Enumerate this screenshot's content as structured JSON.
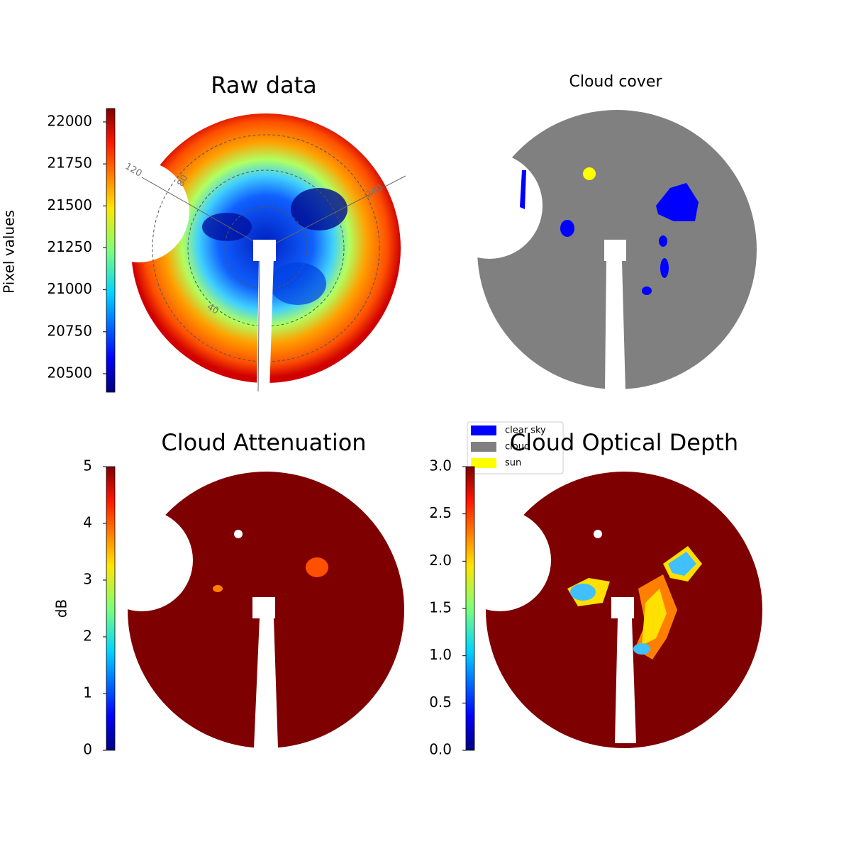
{
  "chart_data": [
    {
      "type": "image",
      "title": "Raw data",
      "colormap": "jet",
      "colorbar": {
        "label": "Pixel values",
        "lim": [
          20390,
          22080
        ],
        "ticks": [
          20500,
          20750,
          21000,
          21250,
          21500,
          21750,
          22000
        ]
      },
      "annotations": [
        "120",
        "80",
        "240",
        "40"
      ]
    },
    {
      "type": "image",
      "title": "Cloud cover",
      "legend": [
        {
          "name": "clear sky",
          "color": "#0000ff"
        },
        {
          "name": "cloud",
          "color": "#808080"
        },
        {
          "name": "sun",
          "color": "#ffff00"
        }
      ]
    },
    {
      "type": "image",
      "title": "Cloud Attenuation",
      "colormap": "jet",
      "colorbar": {
        "label": "dB",
        "lim": [
          0,
          5
        ],
        "ticks": [
          0,
          1,
          2,
          3,
          4,
          5
        ]
      }
    },
    {
      "type": "image",
      "title": "Cloud Optical Depth",
      "colormap": "jet",
      "colorbar": {
        "lim": [
          0,
          3
        ],
        "ticks": [
          {
            "value": 0,
            "label": "0.0"
          },
          0.5,
          {
            "value": 1,
            "label": "1.0"
          },
          1.5,
          {
            "value": 2,
            "label": "2.0"
          },
          2.5,
          {
            "value": 3,
            "label": "3.0"
          }
        ]
      }
    }
  ]
}
